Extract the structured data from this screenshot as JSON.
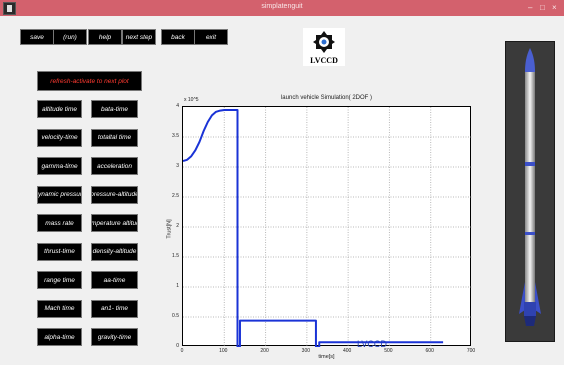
{
  "window": {
    "title": "simplatenguit",
    "controls": [
      "–",
      "□",
      "×"
    ]
  },
  "toolbar": {
    "buttons": [
      "save",
      "(run)",
      "help",
      "next step",
      "back",
      "exit"
    ]
  },
  "refresh_label": "refresh-activate to next plot",
  "plot_buttons": [
    [
      "altitude time",
      "bata-time"
    ],
    [
      "velocity-time",
      "totaltal time"
    ],
    [
      "gamma-time",
      "acceleration"
    ],
    [
      "Dynamic pressure",
      "pressure-altitude"
    ],
    [
      "mass rate",
      "temperature altitude"
    ],
    [
      "thrust-time",
      "density-altitude"
    ],
    [
      "range time",
      "aa-time"
    ],
    [
      "Mach time",
      "an1- time"
    ],
    [
      "alpha-time",
      "gravity-time"
    ]
  ],
  "logo_text": "LVCCD",
  "watermark": "LVCCD",
  "colors": {
    "titlebar": "#d3616d",
    "plot_line": "#1a33d6",
    "button_bg": "#000000",
    "refresh_text": "#ff3a30"
  },
  "chart_data": {
    "type": "line",
    "title": "launch vehicle Simulation( 2DOF )",
    "xlabel": "time[s]",
    "ylabel": "Trust[N]",
    "y_exponent_label": "x 10^5",
    "xlim": [
      0,
      700
    ],
    "ylim": [
      0,
      4
    ],
    "xticks": [
      0,
      100,
      200,
      300,
      400,
      500,
      600,
      700
    ],
    "yticks": [
      0,
      0.5,
      1,
      1.5,
      2,
      2.5,
      3,
      3.5,
      4
    ],
    "grid": true,
    "series": [
      {
        "x": [
          0,
          10,
          20,
          30,
          40,
          50,
          60,
          70,
          80,
          90,
          100,
          110,
          120,
          130,
          132,
          132.01,
          138,
          138.01,
          322,
          322.01,
          330,
          330.01,
          630
        ],
        "y": [
          3.1,
          3.12,
          3.18,
          3.28,
          3.42,
          3.6,
          3.75,
          3.86,
          3.92,
          3.94,
          3.95,
          3.95,
          3.95,
          3.95,
          3.95,
          0,
          0,
          0.44,
          0.44,
          0,
          0,
          0.08,
          0.08
        ]
      }
    ]
  }
}
